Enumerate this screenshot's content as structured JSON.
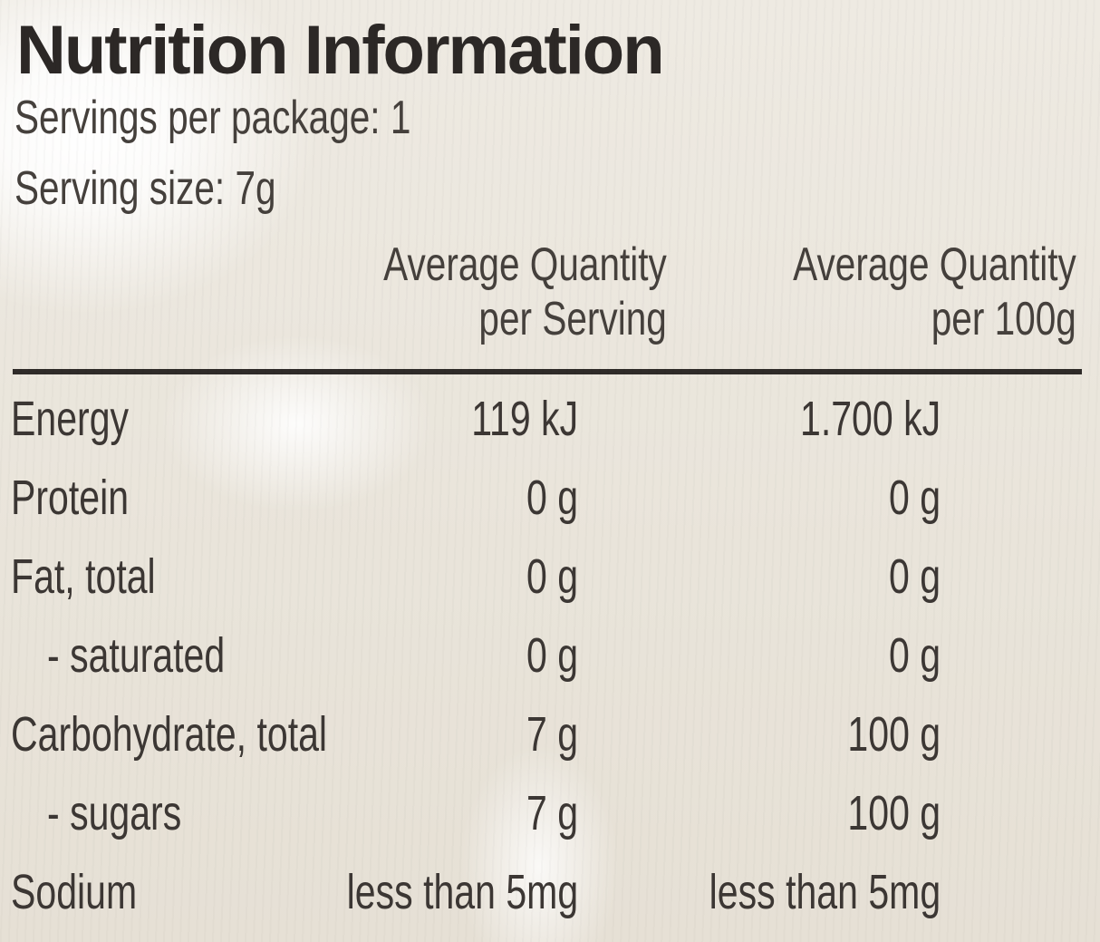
{
  "panel": {
    "title": "Nutrition Information",
    "servings_per_package": "Servings per package: 1",
    "serving_size": "Serving size: 7g"
  },
  "columns": {
    "per_serving": [
      "Average Quantity",
      "per Serving"
    ],
    "per_100g": [
      "Average Quantity",
      "per 100g"
    ]
  },
  "rows": [
    {
      "label": "Energy",
      "per_serving": "119 kJ",
      "per_100g": "1.700 kJ",
      "indent": false
    },
    {
      "label": "Protein",
      "per_serving": "0 g",
      "per_100g": "0 g",
      "indent": false
    },
    {
      "label": "Fat, total",
      "per_serving": "0 g",
      "per_100g": "0 g",
      "indent": false
    },
    {
      "label": "- saturated",
      "per_serving": "0 g",
      "per_100g": "0 g",
      "indent": true
    },
    {
      "label": "Carbohydrate, total",
      "per_serving": "7 g",
      "per_100g": "100 g",
      "indent": false
    },
    {
      "label": "- sugars",
      "per_serving": "7 g",
      "per_100g": "100 g",
      "indent": true
    },
    {
      "label": "Sodium",
      "per_serving": "less than 5mg",
      "per_100g": "less than 5mg",
      "indent": false
    }
  ]
}
